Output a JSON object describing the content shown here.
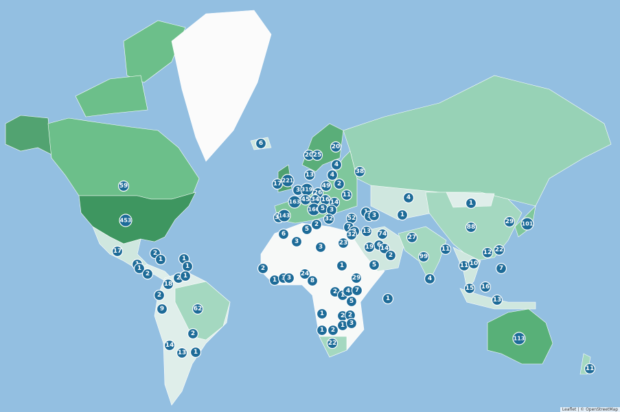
{
  "markers": [
    59,
    453,
    17,
    2,
    1,
    1,
    1,
    1,
    1,
    2,
    2,
    1,
    18,
    2,
    9,
    62,
    2,
    14,
    13,
    1,
    6,
    20,
    25,
    20,
    17,
    221,
    13,
    3,
    319,
    26,
    49,
    163,
    45,
    34,
    16,
    14,
    11,
    2,
    4,
    38,
    4,
    31,
    143,
    160,
    5,
    3,
    32,
    52,
    2,
    5,
    1,
    3,
    3,
    13,
    7,
    2,
    32,
    74,
    6,
    19,
    14,
    2,
    5,
    27,
    4,
    1,
    6,
    3,
    3,
    23,
    1,
    2,
    1,
    3,
    3,
    24,
    8,
    29,
    2,
    1,
    4,
    7,
    5,
    1,
    1,
    2,
    2,
    1,
    3,
    1,
    2,
    22,
    1,
    88,
    29,
    101,
    99,
    4,
    11,
    12,
    22,
    11,
    10,
    7,
    15,
    16,
    13,
    113,
    11
  ],
  "attribution": "Leaflet | © OpenStreetMap"
}
